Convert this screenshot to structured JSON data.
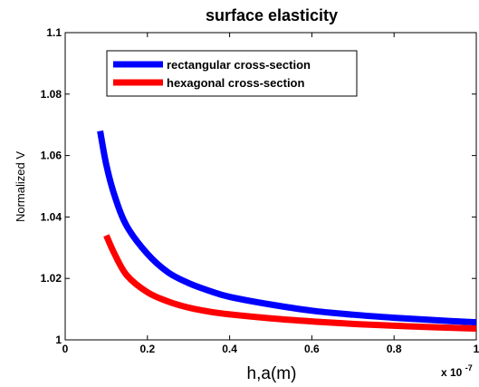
{
  "chart_data": {
    "type": "line",
    "title": "surface elasticity",
    "xlabel": "h,a(m)",
    "ylabel": "Normalized V",
    "x_exponent": "x 10",
    "x_exponent_power": "-7",
    "xlim": [
      0,
      1
    ],
    "ylim": [
      1,
      1.1
    ],
    "xticks": [
      "0",
      "0.2",
      "0.4",
      "0.6",
      "0.8",
      "1"
    ],
    "yticks": [
      "1",
      "1.02",
      "1.04",
      "1.06",
      "1.08",
      "1.1"
    ],
    "grid": false,
    "legend_position": "top",
    "series": [
      {
        "name": "rectangular cross-section",
        "color": "#0000ff",
        "x": [
          0.085,
          0.1,
          0.12,
          0.15,
          0.2,
          0.25,
          0.3,
          0.35,
          0.4,
          0.5,
          0.6,
          0.7,
          0.8,
          0.9,
          1.0
        ],
        "y": [
          1.068,
          1.057,
          1.047,
          1.037,
          1.028,
          1.022,
          1.0185,
          1.016,
          1.014,
          1.0115,
          1.0095,
          1.0082,
          1.0072,
          1.0064,
          1.0057
        ]
      },
      {
        "name": "hexagonal cross-section",
        "color": "#ff0000",
        "x": [
          0.1,
          0.12,
          0.15,
          0.2,
          0.25,
          0.3,
          0.35,
          0.4,
          0.5,
          0.6,
          0.7,
          0.8,
          0.9,
          1.0
        ],
        "y": [
          1.034,
          1.028,
          1.021,
          1.0155,
          1.0125,
          1.0105,
          1.0092,
          1.0083,
          1.007,
          1.006,
          1.0052,
          1.0046,
          1.0041,
          1.0037
        ]
      }
    ]
  }
}
